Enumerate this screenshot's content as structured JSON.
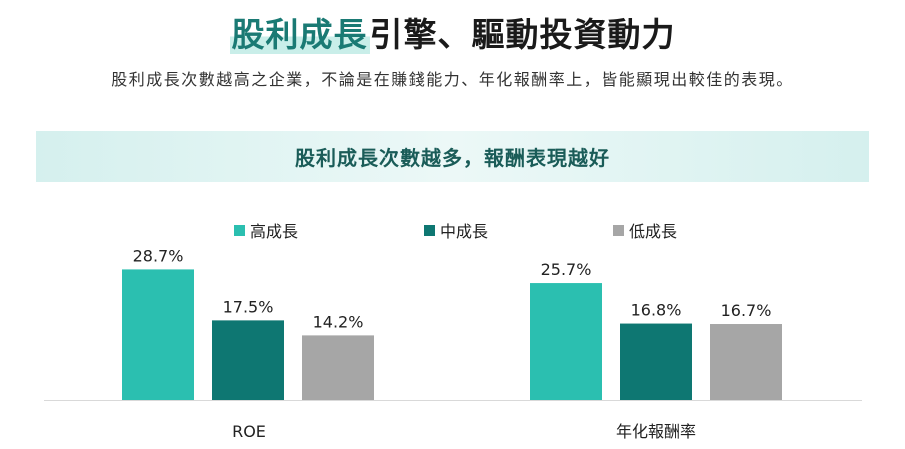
{
  "headline": {
    "highlight": "股利成長",
    "rest": "引擎、驅動投資動力"
  },
  "subtitle": "股利成長次數越高之企業，不論是在賺錢能力、年化報酬率上，皆能顯現出較佳的表現。",
  "colors": {
    "high": "#2bbfb0",
    "mid": "#0e7772",
    "low": "#a6a6a6",
    "accent": "#1a7a74"
  },
  "chart_data": {
    "type": "bar",
    "title": "股利成長次數越多，報酬表現越好",
    "categories": [
      "ROE",
      "年化報酬率"
    ],
    "series": [
      {
        "name": "高成長",
        "values": [
          28.7,
          25.7
        ],
        "labels": [
          "28.7%",
          "25.7%"
        ]
      },
      {
        "name": "中成長",
        "values": [
          17.5,
          16.8
        ],
        "labels": [
          "17.5%",
          "16.8%"
        ]
      },
      {
        "name": "低成長",
        "values": [
          14.2,
          16.7
        ],
        "labels": [
          "14.2%",
          "16.7%"
        ]
      }
    ],
    "unit": "%",
    "ylim": [
      0,
      30
    ],
    "grid": false,
    "legend_position": "top"
  }
}
